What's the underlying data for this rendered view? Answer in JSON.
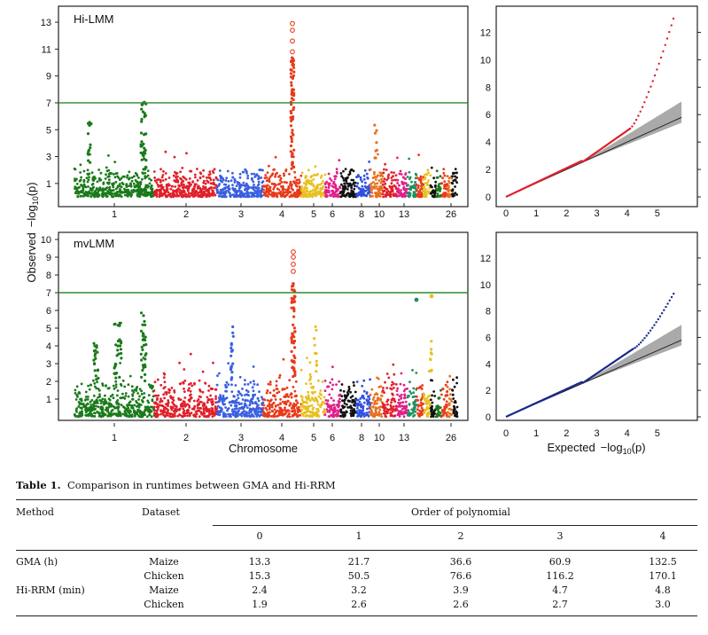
{
  "figure": {
    "y_axis_label_obs": "Observed",
    "y_axis_label_logp": "−log",
    "y_axis_label_sub": "10",
    "y_axis_label_p": "(p)",
    "x_axis_label": "Chromosome",
    "qq_x_label": "Expected",
    "qq_x_logp": "−log",
    "qq_x_sub": "10",
    "qq_x_p": "(p)",
    "colors": {
      "threshold": "#2e8b2e",
      "palette": [
        "#1a7a1a",
        "#e0202a",
        "#3a5fe0",
        "#e83a1a",
        "#e8c020",
        "#e0208a",
        "#111111",
        "#3050e0",
        "#e87020",
        "#209060"
      ],
      "qq_top": "#e0202a",
      "qq_bottom": "#1a2a8a"
    }
  },
  "chart_data": [
    {
      "type": "scatter",
      "title": "Hi-LMM",
      "subtype": "manhattan",
      "ylim": [
        0,
        13.4
      ],
      "y_ticks": [
        1,
        3,
        5,
        7,
        9,
        11,
        13
      ],
      "x_tick_labels": [
        "1",
        "2",
        "3",
        "4",
        "5",
        "6",
        "8",
        "10",
        "13",
        "26"
      ],
      "threshold": 7,
      "grid": false
    },
    {
      "type": "scatter",
      "title": "",
      "subtype": "qq",
      "xlim": [
        0,
        6
      ],
      "ylim": [
        0,
        13
      ],
      "x_ticks": [
        0,
        1,
        2,
        3,
        4,
        5
      ],
      "y_ticks": [
        0,
        2,
        4,
        6,
        8,
        10,
        12
      ],
      "grid": false
    },
    {
      "type": "scatter",
      "title": "mvLMM",
      "subtype": "manhattan",
      "ylim": [
        0,
        10.4
      ],
      "y_ticks": [
        1,
        2,
        3,
        4,
        5,
        6,
        7,
        8,
        9,
        10
      ],
      "x_tick_labels": [
        "1",
        "2",
        "3",
        "4",
        "5",
        "6",
        "8",
        "10",
        "13",
        "26"
      ],
      "threshold": 7,
      "grid": false
    },
    {
      "type": "scatter",
      "title": "",
      "subtype": "qq",
      "xlim": [
        0,
        6
      ],
      "ylim": [
        0,
        13
      ],
      "x_ticks": [
        0,
        1,
        2,
        3,
        4,
        5
      ],
      "y_ticks": [
        0,
        2,
        4,
        6,
        8,
        10,
        12
      ],
      "grid": false
    }
  ],
  "table": {
    "caption_label": "Table 1.",
    "caption_text": "Comparison in runtimes between GMA and Hi-RRM",
    "header_method": "Method",
    "header_dataset": "Dataset",
    "header_group": "Order of polynomial",
    "orders": [
      "0",
      "1",
      "2",
      "3",
      "4"
    ],
    "rows": [
      {
        "method": "GMA (h)",
        "dataset": "Maize",
        "values": [
          "13.3",
          "21.7",
          "36.6",
          "60.9",
          "132.5"
        ]
      },
      {
        "method": "",
        "dataset": "Chicken",
        "values": [
          "15.3",
          "50.5",
          "76.6",
          "116.2",
          "170.1"
        ]
      },
      {
        "method": "Hi-RRM (min)",
        "dataset": "Maize",
        "values": [
          "2.4",
          "3.2",
          "3.9",
          "4.7",
          "4.8"
        ]
      },
      {
        "method": "",
        "dataset": "Chicken",
        "values": [
          "1.9",
          "2.6",
          "2.6",
          "2.7",
          "3.0"
        ]
      }
    ]
  }
}
